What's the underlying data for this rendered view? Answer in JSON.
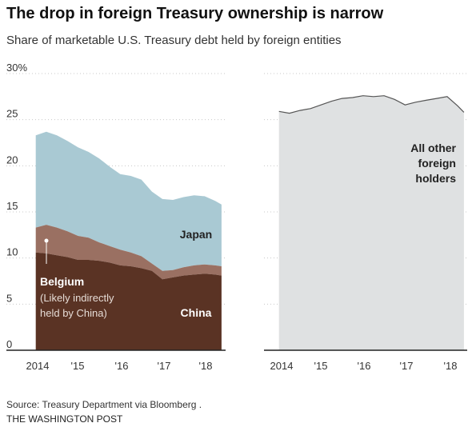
{
  "title": "The drop in foreign Treasury ownership is narrow",
  "subtitle": "Share of marketable U.S. Treasury debt held by foreign entities",
  "source": "Source: Treasury Department via Bloomberg .",
  "credit": "THE WASHINGTON POST",
  "colors": {
    "china": "#5a3324",
    "belgium": "#9a7062",
    "japan": "#a9c9d3",
    "other": "#dfe1e2",
    "other_line": "#555555",
    "grid": "#c8c8c8",
    "axis": "#222222"
  },
  "chart_data": [
    {
      "type": "area",
      "stacked": true,
      "x": [
        2014.0,
        2014.25,
        2014.5,
        2014.75,
        2015.0,
        2015.25,
        2015.5,
        2015.75,
        2016.0,
        2016.25,
        2016.5,
        2016.75,
        2017.0,
        2017.25,
        2017.5,
        2017.75,
        2018.0,
        2018.25,
        2018.4
      ],
      "series": [
        {
          "name": "China",
          "values": [
            10.6,
            10.5,
            10.3,
            10.1,
            9.8,
            9.8,
            9.7,
            9.5,
            9.2,
            9.1,
            8.9,
            8.6,
            7.7,
            7.9,
            8.1,
            8.2,
            8.3,
            8.2,
            8.1
          ]
        },
        {
          "name": "Belgium",
          "values": [
            2.7,
            3.1,
            3.0,
            2.8,
            2.6,
            2.4,
            2.0,
            1.8,
            1.7,
            1.5,
            1.3,
            0.8,
            0.9,
            0.8,
            0.9,
            1.0,
            1.0,
            1.0,
            1.0
          ]
        },
        {
          "name": "Japan",
          "values": [
            10.0,
            10.1,
            10.0,
            9.8,
            9.6,
            9.3,
            9.1,
            8.6,
            8.2,
            8.3,
            8.3,
            7.8,
            7.8,
            7.6,
            7.6,
            7.6,
            7.4,
            7.0,
            6.7
          ]
        }
      ],
      "xticks": [
        "2014",
        "'15",
        "'16",
        "'17",
        "'18"
      ],
      "yticks": [
        "0",
        "5",
        "10",
        "15",
        "20",
        "25",
        "30%"
      ],
      "ylim": [
        0,
        30
      ],
      "labels": {
        "japan": "Japan",
        "belgium": "Belgium",
        "belgium_note": [
          "(Likely indirectly",
          "held by China)"
        ],
        "china": "China"
      }
    },
    {
      "type": "area",
      "x": [
        2014.0,
        2014.25,
        2014.5,
        2014.75,
        2015.0,
        2015.25,
        2015.5,
        2015.75,
        2016.0,
        2016.25,
        2016.5,
        2016.75,
        2017.0,
        2017.25,
        2017.5,
        2017.75,
        2018.0,
        2018.25,
        2018.4
      ],
      "series": [
        {
          "name": "All other foreign holders",
          "values": [
            25.9,
            25.7,
            26.0,
            26.2,
            26.6,
            27.0,
            27.3,
            27.4,
            27.6,
            27.5,
            27.6,
            27.2,
            26.6,
            26.9,
            27.1,
            27.3,
            27.5,
            26.5,
            25.8
          ]
        }
      ],
      "xticks": [
        "2014",
        "'15",
        "'16",
        "'17",
        "'18"
      ],
      "ylim": [
        0,
        30
      ],
      "labels": {
        "other": [
          "All other",
          "foreign",
          "holders"
        ]
      }
    }
  ]
}
